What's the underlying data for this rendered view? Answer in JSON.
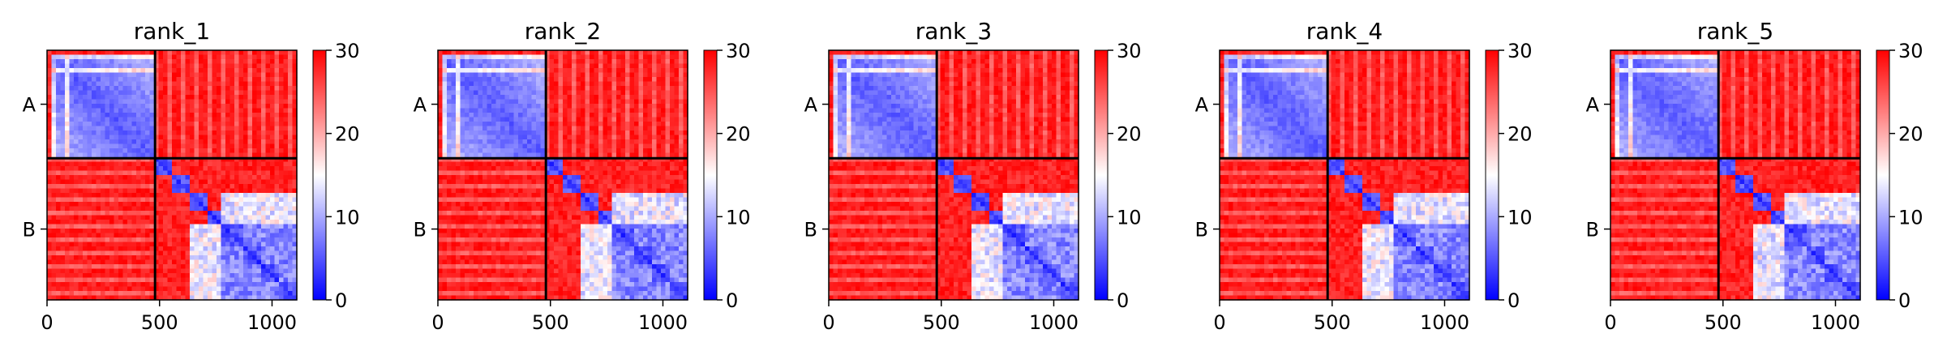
{
  "chart_data": [
    {
      "type": "heatmap",
      "title": "rank_1",
      "chains": [
        "A",
        "B"
      ],
      "chain_boundary": 480,
      "total_length": 1110,
      "xticks": [
        0,
        500,
        1000
      ],
      "colorbar": {
        "min": 0,
        "max": 30,
        "ticks": [
          0,
          10,
          20,
          30
        ],
        "cmap": "bwr"
      },
      "blocks": [
        {
          "row": "A",
          "col": "A",
          "level": "low"
        },
        {
          "row": "A",
          "col": "B",
          "level": "high"
        },
        {
          "row": "B",
          "col": "A",
          "level": "high"
        },
        {
          "row": "B",
          "col": "B",
          "level": "mixed"
        }
      ]
    },
    {
      "type": "heatmap",
      "title": "rank_2",
      "chains": [
        "A",
        "B"
      ],
      "chain_boundary": 480,
      "total_length": 1110,
      "xticks": [
        0,
        500,
        1000
      ],
      "colorbar": {
        "min": 0,
        "max": 30,
        "ticks": [
          0,
          10,
          20,
          30
        ],
        "cmap": "bwr"
      },
      "blocks": [
        {
          "row": "A",
          "col": "A",
          "level": "low"
        },
        {
          "row": "A",
          "col": "B",
          "level": "high"
        },
        {
          "row": "B",
          "col": "A",
          "level": "high"
        },
        {
          "row": "B",
          "col": "B",
          "level": "mixed"
        }
      ]
    },
    {
      "type": "heatmap",
      "title": "rank_3",
      "chains": [
        "A",
        "B"
      ],
      "chain_boundary": 480,
      "total_length": 1110,
      "xticks": [
        0,
        500,
        1000
      ],
      "colorbar": {
        "min": 0,
        "max": 30,
        "ticks": [
          0,
          10,
          20,
          30
        ],
        "cmap": "bwr"
      },
      "blocks": [
        {
          "row": "A",
          "col": "A",
          "level": "low"
        },
        {
          "row": "A",
          "col": "B",
          "level": "high"
        },
        {
          "row": "B",
          "col": "A",
          "level": "high"
        },
        {
          "row": "B",
          "col": "B",
          "level": "mixed"
        }
      ]
    },
    {
      "type": "heatmap",
      "title": "rank_4",
      "chains": [
        "A",
        "B"
      ],
      "chain_boundary": 480,
      "total_length": 1110,
      "xticks": [
        0,
        500,
        1000
      ],
      "colorbar": {
        "min": 0,
        "max": 30,
        "ticks": [
          0,
          10,
          20,
          30
        ],
        "cmap": "bwr"
      },
      "blocks": [
        {
          "row": "A",
          "col": "A",
          "level": "low"
        },
        {
          "row": "A",
          "col": "B",
          "level": "high"
        },
        {
          "row": "B",
          "col": "A",
          "level": "high"
        },
        {
          "row": "B",
          "col": "B",
          "level": "mixed"
        }
      ]
    },
    {
      "type": "heatmap",
      "title": "rank_5",
      "chains": [
        "A",
        "B"
      ],
      "chain_boundary": 480,
      "total_length": 1110,
      "xticks": [
        0,
        500,
        1000
      ],
      "colorbar": {
        "min": 0,
        "max": 30,
        "ticks": [
          0,
          10,
          20,
          30
        ],
        "cmap": "bwr"
      },
      "blocks": [
        {
          "row": "A",
          "col": "A",
          "level": "low"
        },
        {
          "row": "A",
          "col": "B",
          "level": "high"
        },
        {
          "row": "B",
          "col": "A",
          "level": "high"
        },
        {
          "row": "B",
          "col": "B",
          "level": "mixed"
        }
      ]
    }
  ]
}
